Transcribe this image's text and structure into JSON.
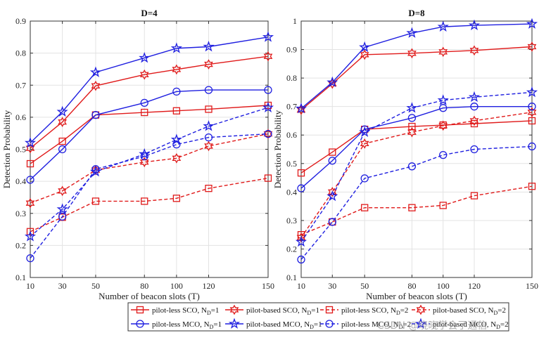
{
  "chart_data": [
    {
      "type": "line",
      "title": "D=4",
      "xlabel": "Number of beacon slots (T)",
      "ylabel": "Detection Probability",
      "categories": [
        "10",
        "30",
        "50",
        "80",
        "100",
        "120",
        "150"
      ],
      "ylim": [
        0.1,
        0.9
      ],
      "yticks": [
        "0.1",
        "0.2",
        "0.3",
        "0.4",
        "0.5",
        "0.6",
        "0.7",
        "0.8",
        "0.9"
      ],
      "grid": true,
      "series": [
        {
          "name": "pilot-less SCO, N_D=1",
          "values": [
            0.455,
            0.525,
            0.607,
            0.615,
            0.62,
            0.625,
            0.637
          ]
        },
        {
          "name": "pilot-based SCO, N_D=1",
          "values": [
            0.503,
            0.585,
            0.698,
            0.733,
            0.749,
            0.765,
            0.79
          ]
        },
        {
          "name": "pilot-less SCO, N_D=2",
          "values": [
            0.243,
            0.288,
            0.338,
            0.338,
            0.347,
            0.378,
            0.41
          ]
        },
        {
          "name": "pilot-based SCO, N_D=2",
          "values": [
            0.332,
            0.37,
            0.435,
            0.46,
            0.472,
            0.51,
            0.548
          ]
        },
        {
          "name": "pilot-less MCO, N_D=1",
          "values": [
            0.405,
            0.5,
            0.607,
            0.645,
            0.68,
            0.685,
            0.685
          ]
        },
        {
          "name": "pilot-based MCO, N_D=1",
          "values": [
            0.52,
            0.617,
            0.74,
            0.785,
            0.815,
            0.82,
            0.85
          ]
        },
        {
          "name": "pilot-less MCO, N_D=2",
          "values": [
            0.16,
            0.29,
            0.438,
            0.478,
            0.515,
            0.537,
            0.548
          ]
        },
        {
          "name": "pilot-based MCO, N_D=2",
          "values": [
            0.228,
            0.313,
            0.43,
            0.485,
            0.53,
            0.572,
            0.63
          ]
        }
      ]
    },
    {
      "type": "line",
      "title": "D=8",
      "xlabel": "Number of beacon slots (T)",
      "ylabel": "Detection Probability",
      "categories": [
        "10",
        "30",
        "50",
        "80",
        "100",
        "120",
        "150"
      ],
      "ylim": [
        0.1,
        1.0
      ],
      "yticks": [
        "0.1",
        "0.2",
        "0.3",
        "0.4",
        "0.5",
        "0.6",
        "0.7",
        "0.8",
        "0.9",
        "1"
      ],
      "grid": true,
      "series": [
        {
          "name": "pilot-less SCO, N_D=1",
          "values": [
            0.467,
            0.54,
            0.62,
            0.63,
            0.635,
            0.64,
            0.65
          ]
        },
        {
          "name": "pilot-based SCO, N_D=1",
          "values": [
            0.688,
            0.78,
            0.882,
            0.887,
            0.892,
            0.897,
            0.91
          ]
        },
        {
          "name": "pilot-less SCO, N_D=2",
          "values": [
            0.25,
            0.295,
            0.345,
            0.345,
            0.353,
            0.387,
            0.42
          ]
        },
        {
          "name": "pilot-based SCO, N_D=2",
          "values": [
            0.24,
            0.4,
            0.57,
            0.61,
            0.633,
            0.65,
            0.68
          ]
        },
        {
          "name": "pilot-less MCO, N_D=1",
          "values": [
            0.413,
            0.51,
            0.62,
            0.66,
            0.695,
            0.7,
            0.7
          ]
        },
        {
          "name": "pilot-based MCO, N_D=1",
          "values": [
            0.693,
            0.785,
            0.908,
            0.958,
            0.98,
            0.985,
            0.99
          ]
        },
        {
          "name": "pilot-less MCO, N_D=2",
          "values": [
            0.163,
            0.295,
            0.448,
            0.49,
            0.53,
            0.55,
            0.56
          ]
        },
        {
          "name": "pilot-based MCO, N_D=2",
          "values": [
            0.225,
            0.385,
            0.61,
            0.695,
            0.722,
            0.733,
            0.75
          ]
        }
      ]
    }
  ],
  "legend": {
    "location": "bottom",
    "entries": [
      {
        "label": "pilot-less SCO, N",
        "sub": "D",
        "suffix": "=1",
        "color": "#e01a1a",
        "dash": false,
        "marker": "square"
      },
      {
        "label": "pilot-based SCO, N",
        "sub": "D",
        "suffix": "=1",
        "color": "#e01a1a",
        "dash": false,
        "marker": "hexagram"
      },
      {
        "label": "pilot-less SCO, N",
        "sub": "D",
        "suffix": "=2",
        "color": "#e01a1a",
        "dash": true,
        "marker": "square"
      },
      {
        "label": "pilot-based SCO, N",
        "sub": "D",
        "suffix": "=2",
        "color": "#e01a1a",
        "dash": true,
        "marker": "hexagram"
      },
      {
        "label": "pilot-less MCO, N",
        "sub": "D",
        "suffix": "=1",
        "color": "#1f1fe0",
        "dash": false,
        "marker": "circle"
      },
      {
        "label": "pilot-based MCO, N",
        "sub": "D",
        "suffix": "=1",
        "color": "#1f1fe0",
        "dash": false,
        "marker": "pentagram"
      },
      {
        "label": "pilot-less MCO, N",
        "sub": "D",
        "suffix": "=2",
        "color": "#1f1fe0",
        "dash": true,
        "marker": "circle"
      },
      {
        "label": "pilot-based MCO, N",
        "sub": "D",
        "suffix": "=2",
        "color": "#1f1fe0",
        "dash": true,
        "marker": "pentagram"
      }
    ]
  },
  "watermark": "CSDN @晓晓学会了通信"
}
